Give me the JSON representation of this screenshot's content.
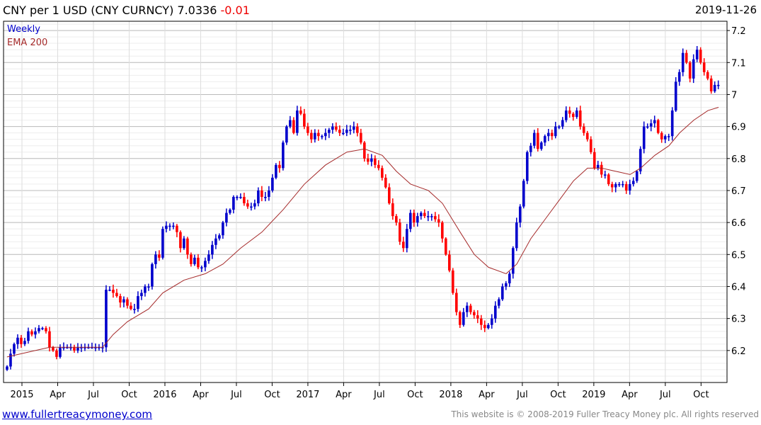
{
  "header": {
    "title": "CNY per 1 USD (CNY CURNCY) 7.0336",
    "change": "-0.01",
    "date": "2019-11-26"
  },
  "footer": {
    "link": "www.fullertreacymoney.com",
    "copyright": "This website is © 2008-2019 Fuller Treacy Money plc. All rights reserved"
  },
  "colors": {
    "up": "#0000cc",
    "down": "#ff0000",
    "ema": "#a52a2a"
  },
  "chart_data": {
    "type": "candlestick",
    "title": "CNY per 1 USD (CNY CURNCY)",
    "legend": [
      "Weekly",
      "EMA 200"
    ],
    "legend_placement": "top-left",
    "x_units": "months since Jan 2015",
    "x_start": -1.25,
    "x_step": 0.297,
    "xlim": [
      -1.545,
      59.18
    ],
    "ylim": [
      6.1,
      7.229
    ],
    "y_ticks": [
      6.2,
      6.3,
      6.4,
      6.5,
      6.6,
      6.7,
      6.8,
      6.9,
      7,
      7.1,
      7.2
    ],
    "y_tick_labels": [
      "6.2",
      "6.3",
      "6.4",
      "6.5",
      "6.6",
      "6.7",
      "6.8",
      "6.9",
      "7",
      "7.1",
      "7.2"
    ],
    "x_ticks": [
      {
        "m": 0,
        "label": "2015"
      },
      {
        "m": 3,
        "label": "Apr"
      },
      {
        "m": 6,
        "label": "Jul"
      },
      {
        "m": 9,
        "label": "Oct"
      },
      {
        "m": 12,
        "label": "2016"
      },
      {
        "m": 15,
        "label": "Apr"
      },
      {
        "m": 18,
        "label": "Jul"
      },
      {
        "m": 21,
        "label": "Oct"
      },
      {
        "m": 24,
        "label": "2017"
      },
      {
        "m": 27,
        "label": "Apr"
      },
      {
        "m": 30,
        "label": "Jul"
      },
      {
        "m": 33,
        "label": "Oct"
      },
      {
        "m": 36,
        "label": "2018"
      },
      {
        "m": 39,
        "label": "Apr"
      },
      {
        "m": 42,
        "label": "Jul"
      },
      {
        "m": 45,
        "label": "Oct"
      },
      {
        "m": 48,
        "label": "2019"
      },
      {
        "m": 51,
        "label": "Apr"
      },
      {
        "m": 54,
        "label": "Jul"
      },
      {
        "m": 57,
        "label": "Oct"
      }
    ],
    "closes": [
      6.15,
      6.19,
      6.22,
      6.24,
      6.22,
      6.23,
      6.26,
      6.25,
      6.26,
      6.27,
      6.27,
      6.26,
      6.21,
      6.2,
      6.18,
      6.21,
      6.21,
      6.21,
      6.21,
      6.2,
      6.21,
      6.21,
      6.21,
      6.21,
      6.21,
      6.21,
      6.21,
      6.21,
      6.39,
      6.39,
      6.38,
      6.37,
      6.35,
      6.36,
      6.34,
      6.33,
      6.33,
      6.37,
      6.38,
      6.4,
      6.4,
      6.47,
      6.5,
      6.49,
      6.58,
      6.59,
      6.59,
      6.59,
      6.57,
      6.52,
      6.55,
      6.5,
      6.47,
      6.49,
      6.46,
      6.46,
      6.48,
      6.5,
      6.53,
      6.55,
      6.56,
      6.6,
      6.63,
      6.64,
      6.68,
      6.68,
      6.68,
      6.66,
      6.65,
      6.65,
      6.66,
      6.7,
      6.68,
      6.68,
      6.7,
      6.74,
      6.78,
      6.77,
      6.85,
      6.9,
      6.92,
      6.88,
      6.95,
      6.94,
      6.9,
      6.88,
      6.86,
      6.88,
      6.87,
      6.87,
      6.88,
      6.89,
      6.9,
      6.89,
      6.88,
      6.88,
      6.89,
      6.89,
      6.9,
      6.88,
      6.85,
      6.8,
      6.79,
      6.8,
      6.78,
      6.77,
      6.74,
      6.71,
      6.66,
      6.62,
      6.6,
      6.54,
      6.52,
      6.58,
      6.63,
      6.6,
      6.62,
      6.63,
      6.62,
      6.62,
      6.62,
      6.61,
      6.6,
      6.55,
      6.5,
      6.45,
      6.38,
      6.32,
      6.28,
      6.32,
      6.34,
      6.32,
      6.31,
      6.3,
      6.28,
      6.27,
      6.28,
      6.3,
      6.34,
      6.36,
      6.4,
      6.41,
      6.44,
      6.52,
      6.6,
      6.65,
      6.73,
      6.82,
      6.84,
      6.88,
      6.83,
      6.85,
      6.87,
      6.88,
      6.87,
      6.9,
      6.9,
      6.92,
      6.95,
      6.94,
      6.93,
      6.95,
      6.9,
      6.88,
      6.86,
      6.82,
      6.77,
      6.78,
      6.75,
      6.75,
      6.72,
      6.71,
      6.72,
      6.72,
      6.72,
      6.7,
      6.72,
      6.73,
      6.76,
      6.83,
      6.9,
      6.9,
      6.91,
      6.92,
      6.88,
      6.86,
      6.87,
      6.87,
      6.95,
      7.04,
      7.07,
      7.13,
      7.1,
      7.05,
      7.11,
      7.14,
      7.1,
      7.07,
      7.05,
      7.01,
      7.03,
      7.03
    ],
    "ema200": [
      [
        -1.25,
        6.18
      ],
      [
        -0.06,
        6.19
      ],
      [
        2.32,
        6.21
      ],
      [
        6.77,
        6.21
      ],
      [
        7.66,
        6.25
      ],
      [
        8.85,
        6.29
      ],
      [
        10.64,
        6.33
      ],
      [
        11.82,
        6.38
      ],
      [
        13.61,
        6.42
      ],
      [
        15.39,
        6.44
      ],
      [
        16.87,
        6.47
      ],
      [
        18.36,
        6.52
      ],
      [
        20.14,
        6.57
      ],
      [
        21.92,
        6.64
      ],
      [
        23.71,
        6.72
      ],
      [
        25.49,
        6.78
      ],
      [
        27.27,
        6.82
      ],
      [
        28.76,
        6.83
      ],
      [
        30.24,
        6.81
      ],
      [
        31.43,
        6.76
      ],
      [
        32.62,
        6.72
      ],
      [
        34.11,
        6.7
      ],
      [
        35.29,
        6.66
      ],
      [
        36.78,
        6.57
      ],
      [
        37.97,
        6.5
      ],
      [
        39.16,
        6.46
      ],
      [
        40.64,
        6.44
      ],
      [
        41.53,
        6.47
      ],
      [
        42.72,
        6.55
      ],
      [
        43.91,
        6.61
      ],
      [
        45.1,
        6.67
      ],
      [
        46.29,
        6.73
      ],
      [
        47.47,
        6.77
      ],
      [
        48.66,
        6.77
      ],
      [
        49.85,
        6.76
      ],
      [
        51.04,
        6.75
      ],
      [
        51.93,
        6.77
      ],
      [
        53.12,
        6.81
      ],
      [
        54.31,
        6.84
      ],
      [
        55.2,
        6.88
      ],
      [
        56.39,
        6.92
      ],
      [
        57.58,
        6.95
      ],
      [
        58.47,
        6.96
      ]
    ]
  }
}
